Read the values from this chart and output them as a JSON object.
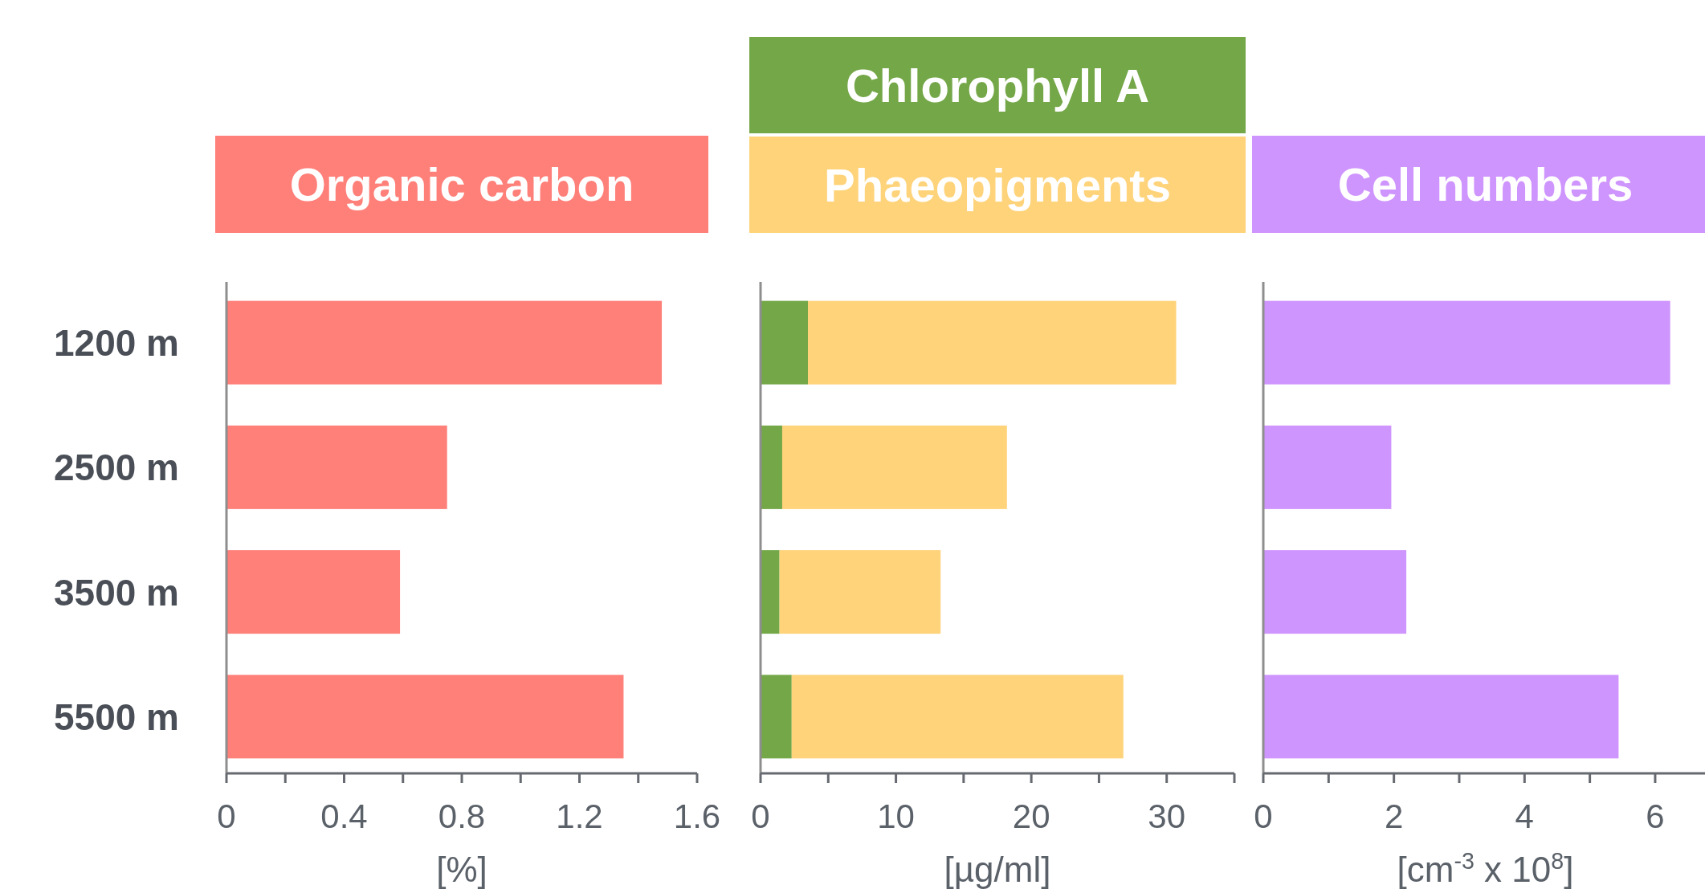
{
  "chart_data": [
    {
      "type": "bar",
      "orientation": "horizontal",
      "title": "Organic carbon",
      "categories": [
        "1200 m",
        "2500 m",
        "3500 m",
        "5500 m"
      ],
      "values": [
        1.48,
        0.75,
        0.59,
        1.35
      ],
      "color": "#ff7f79",
      "xlabel": "[%]",
      "xlim": [
        0,
        1.6
      ],
      "xticks": [
        0,
        {
          "value": 0.2,
          "label": null
        },
        0.4,
        {
          "value": 0.6,
          "label": null
        },
        0.8,
        {
          "value": 1.0,
          "label": null
        },
        1.2,
        {
          "value": 1.4,
          "label": null
        },
        1.6
      ]
    },
    {
      "type": "bar",
      "orientation": "horizontal",
      "stacked": true,
      "categories": [
        null,
        null,
        null,
        null
      ],
      "series": [
        {
          "name": "Chlorophyll A",
          "color": "#74a748",
          "values": [
            3.5,
            1.6,
            1.4,
            2.3
          ]
        },
        {
          "name": "Phaeopigments",
          "color": "#fed37a",
          "values": [
            27.2,
            16.6,
            11.9,
            24.5
          ]
        }
      ],
      "xlabel": "[µg/ml]",
      "xlim": [
        0,
        35
      ],
      "xticks": [
        0,
        {
          "value": 5,
          "label": null
        },
        10,
        {
          "value": 15,
          "label": null
        },
        20,
        {
          "value": 25,
          "label": null
        },
        30,
        {
          "value": 35,
          "label": null
        }
      ],
      "legend": "top",
      "tick_labels": "x"
    },
    {
      "type": "bar",
      "orientation": "horizontal",
      "title": "Cell numbers",
      "categories": [
        null,
        null,
        null,
        null
      ],
      "values": [
        6.23,
        1.96,
        2.19,
        5.44
      ],
      "color": "#cf95fe",
      "xlabel": "[cm$^{-3}$ x 10$^{8}$]",
      "xlim": [
        0,
        6.8
      ],
      "xticks": [
        0,
        {
          "value": 1,
          "label": null
        },
        2,
        {
          "value": 3,
          "label": null
        },
        4,
        {
          "value": 5,
          "label": null
        },
        6
      ],
      "tick_labels": "x"
    }
  ]
}
